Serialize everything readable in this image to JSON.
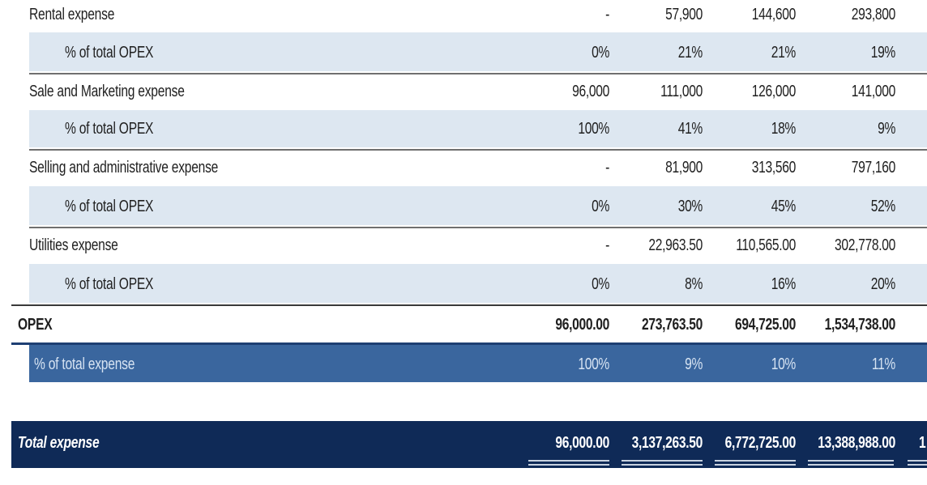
{
  "rows": {
    "rental": {
      "label": "Rental expense",
      "values": [
        "-",
        "57,900",
        "144,600",
        "293,800"
      ]
    },
    "rental_pct": {
      "label": "% of total OPEX",
      "values": [
        "0%",
        "21%",
        "21%",
        "19%"
      ]
    },
    "sales": {
      "label": "Sale and Marketing expense",
      "values": [
        "96,000",
        "111,000",
        "126,000",
        "141,000"
      ]
    },
    "sales_pct": {
      "label": "% of total OPEX",
      "values": [
        "100%",
        "41%",
        "18%",
        "9%"
      ]
    },
    "sga": {
      "label": "Selling and administrative expense",
      "values": [
        "-",
        "81,900",
        "313,560",
        "797,160"
      ]
    },
    "sga_pct": {
      "label": "% of total OPEX",
      "values": [
        "0%",
        "30%",
        "45%",
        "52%"
      ]
    },
    "util": {
      "label": "Utilities expense",
      "values": [
        "-",
        "22,963.50",
        "110,565.00",
        "302,778.00"
      ]
    },
    "util_pct": {
      "label": "% of total OPEX",
      "values": [
        "0%",
        "8%",
        "16%",
        "20%"
      ]
    },
    "opex": {
      "label": "OPEX",
      "values": [
        "96,000.00",
        "273,763.50",
        "694,725.00",
        "1,534,738.00"
      ]
    },
    "opex_pct": {
      "label": "% of total expense",
      "values": [
        "100%",
        "9%",
        "10%",
        "11%"
      ]
    },
    "total": {
      "label": "Total expense",
      "values": [
        "96,000.00",
        "3,137,263.50",
        "6,772,725.00",
        "13,388,988.00"
      ],
      "cut_off": "1"
    }
  },
  "colors": {
    "pct_row_bg": "#dde7f1",
    "opex_pct_bg": "#3a669e",
    "total_bg": "#0f2a57"
  }
}
